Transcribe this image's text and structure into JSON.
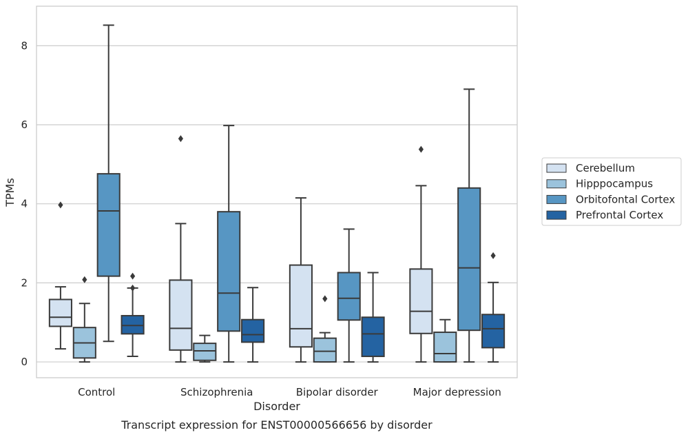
{
  "caption": "Transcript expression for ENST00000566656 by disorder",
  "chart_data": {
    "type": "box",
    "xlabel": "Disorder",
    "ylabel": "TPMs",
    "categories": [
      "Control",
      "Schizophrenia",
      "Bipolar disorder",
      "Major depression"
    ],
    "ylim": [
      -0.4,
      9.0
    ],
    "yticks": [
      0,
      2,
      4,
      6,
      8
    ],
    "grid": "horizontal",
    "legend_position": "right",
    "series": [
      {
        "name": "Cerebellum",
        "color": "#d4e2f1",
        "boxes": [
          {
            "whislo": 0.33,
            "q1": 0.9,
            "med": 1.13,
            "q3": 1.58,
            "whishi": 1.9,
            "fliers": [
              3.97
            ]
          },
          {
            "whislo": 0.0,
            "q1": 0.3,
            "med": 0.85,
            "q3": 2.07,
            "whishi": 3.5,
            "fliers": [
              5.65
            ]
          },
          {
            "whislo": 0.0,
            "q1": 0.38,
            "med": 0.84,
            "q3": 2.45,
            "whishi": 4.15,
            "fliers": []
          },
          {
            "whislo": 0.0,
            "q1": 0.72,
            "med": 1.28,
            "q3": 2.35,
            "whishi": 4.46,
            "fliers": [
              5.38
            ]
          }
        ]
      },
      {
        "name": "Hipppocampus",
        "color": "#9bc3dc",
        "boxes": [
          {
            "whislo": 0.0,
            "q1": 0.1,
            "med": 0.48,
            "q3": 0.87,
            "whishi": 1.48,
            "fliers": [
              2.08
            ]
          },
          {
            "whislo": 0.0,
            "q1": 0.04,
            "med": 0.28,
            "q3": 0.47,
            "whishi": 0.67,
            "fliers": []
          },
          {
            "whislo": 0.0,
            "q1": 0.0,
            "med": 0.27,
            "q3": 0.6,
            "whishi": 0.74,
            "fliers": [
              1.6
            ]
          },
          {
            "whislo": 0.0,
            "q1": 0.0,
            "med": 0.21,
            "q3": 0.75,
            "whishi": 1.07,
            "fliers": []
          }
        ]
      },
      {
        "name": "Orbitofontal Cortex",
        "color": "#5796c3",
        "boxes": [
          {
            "whislo": 0.52,
            "q1": 2.17,
            "med": 3.82,
            "q3": 4.76,
            "whishi": 8.52,
            "fliers": []
          },
          {
            "whislo": 0.0,
            "q1": 0.78,
            "med": 1.74,
            "q3": 3.8,
            "whishi": 5.98,
            "fliers": []
          },
          {
            "whislo": 0.0,
            "q1": 1.06,
            "med": 1.61,
            "q3": 2.26,
            "whishi": 3.36,
            "fliers": []
          },
          {
            "whislo": 0.0,
            "q1": 0.8,
            "med": 2.38,
            "q3": 4.4,
            "whishi": 6.9,
            "fliers": []
          }
        ]
      },
      {
        "name": "Prefrontal Cortex",
        "color": "#2463a2",
        "boxes": [
          {
            "whislo": 0.14,
            "q1": 0.71,
            "med": 0.92,
            "q3": 1.17,
            "whishi": 1.87,
            "fliers": [
              1.87,
              2.17
            ]
          },
          {
            "whislo": 0.0,
            "q1": 0.5,
            "med": 0.69,
            "q3": 1.07,
            "whishi": 1.88,
            "fliers": []
          },
          {
            "whislo": 0.0,
            "q1": 0.14,
            "med": 0.71,
            "q3": 1.13,
            "whishi": 2.26,
            "fliers": []
          },
          {
            "whislo": 0.0,
            "q1": 0.36,
            "med": 0.84,
            "q3": 1.2,
            "whishi": 2.01,
            "fliers": [
              2.69
            ]
          }
        ]
      }
    ]
  }
}
